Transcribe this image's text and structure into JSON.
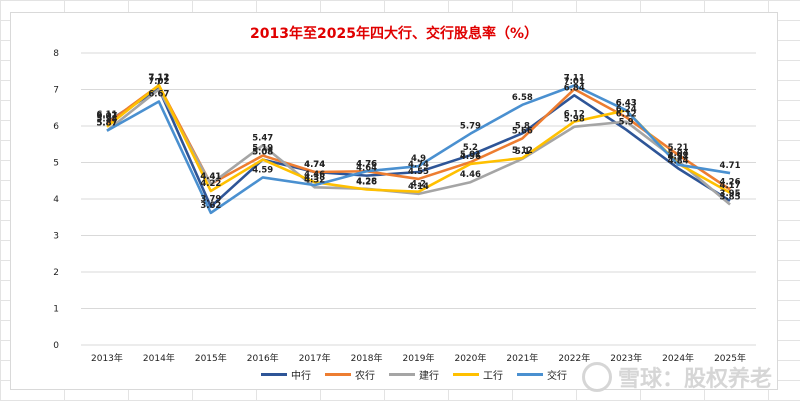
{
  "chart_data": {
    "type": "line",
    "title": "2013年至2025年四大行、交行股息率（%）",
    "categories": [
      "2013年",
      "2014年",
      "2015年",
      "2016年",
      "2017年",
      "2018年",
      "2019年",
      "2020年",
      "2021年",
      "2022年",
      "2023年",
      "2024年",
      "2025年"
    ],
    "ylim": [
      0,
      8
    ],
    "yticks": [
      0,
      1,
      2,
      3,
      4,
      5,
      6,
      7,
      8
    ],
    "grid": true,
    "legend_position": "bottom",
    "series": [
      {
        "name": "中行",
        "color": "#2e5597",
        "values": [
          6.11,
          7.02,
          3.79,
          5.08,
          4.74,
          4.64,
          4.74,
          5.2,
          5.8,
          6.84,
          5.9,
          4.84,
          3.95
        ]
      },
      {
        "name": "农行",
        "color": "#ed7d31",
        "values": [
          6.07,
          7.11,
          4.41,
          5.19,
          4.74,
          4.76,
          4.55,
          5.01,
          5.66,
          7.01,
          6.24,
          5.21,
          4.26
        ]
      },
      {
        "name": "建行",
        "color": "#a5a5a5",
        "values": [
          5.87,
          7.0,
          4.41,
          5.47,
          4.32,
          4.28,
          4.14,
          4.46,
          5.1,
          5.98,
          6.12,
          5.04,
          3.85
        ]
      },
      {
        "name": "工行",
        "color": "#ffc000",
        "values": [
          5.98,
          7.12,
          4.22,
          5.08,
          4.46,
          4.26,
          4.2,
          4.96,
          5.12,
          6.12,
          6.43,
          4.97,
          4.17
        ]
      },
      {
        "name": "交行",
        "color": "#4a90d0",
        "values": [
          5.87,
          6.67,
          3.62,
          4.59,
          4.38,
          4.76,
          4.9,
          5.79,
          6.58,
          7.11,
          6.43,
          4.94,
          4.71
        ]
      }
    ]
  },
  "watermark": {
    "text": "雪球：股权养老"
  }
}
